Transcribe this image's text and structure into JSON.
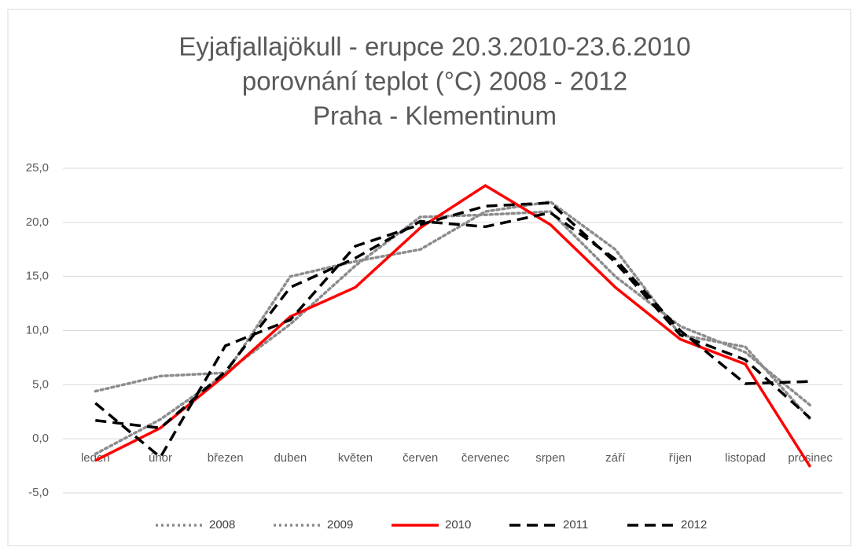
{
  "chart_data": {
    "type": "line",
    "title": [
      "Eyjafjallajökull - erupce 20.3.2010-23.6.2010",
      "porovnání teplot (°C) 2008 - 2012",
      "Praha - Klementinum"
    ],
    "categories": [
      "leden",
      "únor",
      "březen",
      "duben",
      "květen",
      "červen",
      "červenec",
      "srpen",
      "září",
      "říjen",
      "listopad",
      "prosinec"
    ],
    "ylim": [
      -5,
      25
    ],
    "yticks": [
      {
        "value": -5,
        "label": "-5,0"
      },
      {
        "value": 0,
        "label": "0,0"
      },
      {
        "value": 5,
        "label": "5,0"
      },
      {
        "value": 10,
        "label": "10,0"
      },
      {
        "value": 15,
        "label": "15,0"
      },
      {
        "value": 20,
        "label": "20,0"
      },
      {
        "value": 25,
        "label": "25,0"
      }
    ],
    "grid": true,
    "legend": "bottom",
    "series": [
      {
        "name": "2008",
        "color": "#8c8c8c",
        "dash": "dotted",
        "values": [
          4.4,
          5.8,
          6.1,
          10.6,
          16.0,
          20.5,
          20.7,
          21.0,
          15.0,
          10.4,
          8.0,
          3.1
        ]
      },
      {
        "name": "2009",
        "color": "#8c8c8c",
        "dash": "dotted",
        "values": [
          -1.4,
          1.8,
          6.0,
          15.0,
          16.4,
          17.5,
          21.0,
          21.9,
          17.5,
          9.6,
          8.5,
          1.8
        ]
      },
      {
        "name": "2010",
        "color": "#ff0000",
        "dash": "solid",
        "values": [
          -2.0,
          1.0,
          5.9,
          11.3,
          14.0,
          19.5,
          23.4,
          19.8,
          14.0,
          9.2,
          6.9,
          -2.6
        ]
      },
      {
        "name": "2011",
        "color": "#000000",
        "dash": "dashed",
        "values": [
          1.7,
          1.0,
          6.2,
          14.0,
          16.7,
          20.1,
          19.6,
          20.9,
          16.6,
          10.0,
          5.1,
          5.3
        ]
      },
      {
        "name": "2012",
        "color": "#000000",
        "dash": "dashed",
        "values": [
          3.3,
          -1.7,
          8.6,
          11.0,
          17.8,
          19.8,
          21.5,
          21.8,
          16.3,
          9.6,
          7.3,
          1.9
        ]
      }
    ]
  }
}
